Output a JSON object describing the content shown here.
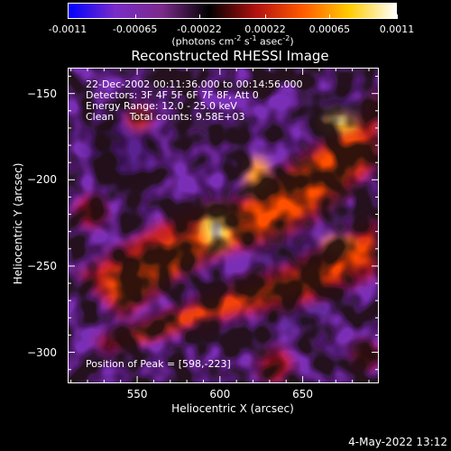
{
  "colorbar": {
    "colors": [
      "#0000ff",
      "#7a2cc8",
      "#7b2a8a",
      "#000000",
      "#b01010",
      "#ff5a00",
      "#ffcc00",
      "#ffffff"
    ],
    "ticks": [
      "-0.0011",
      "-0.00065",
      "-0.00022",
      "0.00022",
      "0.00065",
      "0.0011"
    ],
    "tick_values": [
      -0.0011,
      -0.00065,
      -0.00022,
      0.00022,
      0.00065,
      0.0011
    ],
    "range": [
      -0.0011,
      0.0011
    ],
    "units_main": "(photons cm",
    "units_sup1": "-2",
    "units_mid1": " s",
    "units_sup2": "-1",
    "units_mid2": " asec",
    "units_sup3": "-2",
    "units_end": ")"
  },
  "chart_data": {
    "type": "heatmap",
    "title": "Reconstructed RHESSI Image",
    "xlabel": "Heliocentric X (arcsec)",
    "ylabel": "Heliocentric Y (arcsec)",
    "xlim": [
      508,
      696
    ],
    "ylim": [
      -318,
      -135
    ],
    "x_ticks": [
      550,
      600,
      650
    ],
    "y_ticks": [
      -150,
      -200,
      -250,
      -300
    ],
    "peak": [
      598,
      -223
    ],
    "annotations": [
      "22-Dec-2002 00:11:36.000 to 00:14:56.000",
      "Detectors: 3F 4F 5F 6F 7F 8F, Att 0",
      "Energy Range: 12.0 - 25.0 keV",
      "Clean     Total counts: 9.58E+03"
    ],
    "peak_label": "Position of Peak = [598,-223]"
  },
  "timestamp": "4-May-2022 13:12"
}
